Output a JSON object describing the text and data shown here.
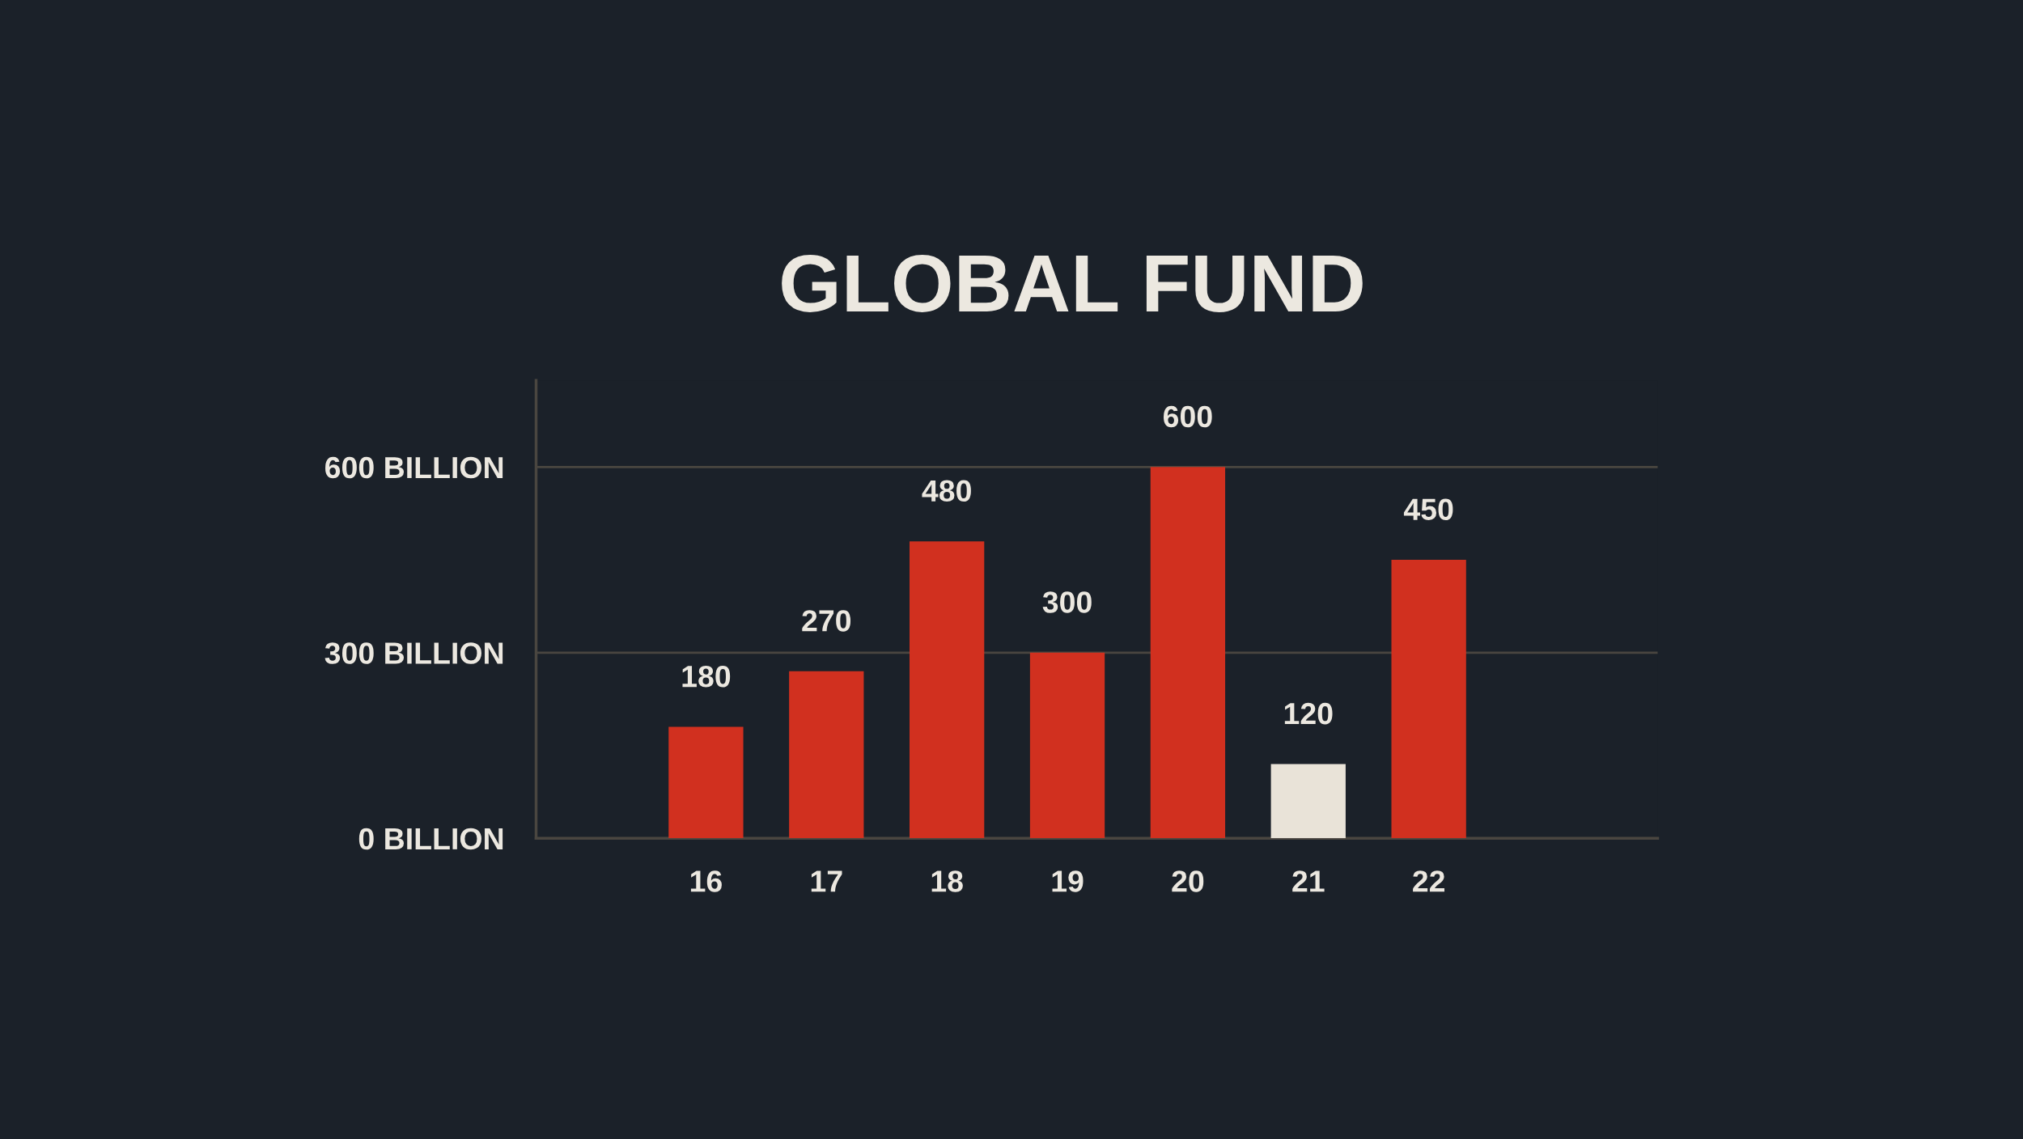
{
  "chart_data": {
    "type": "bar",
    "title": "GLOBAL FUND",
    "categories": [
      "16",
      "17",
      "18",
      "19",
      "20",
      "21",
      "22"
    ],
    "values": [
      180,
      270,
      480,
      300,
      600,
      120,
      450
    ],
    "colors": [
      "#d1301f",
      "#d1301f",
      "#d1301f",
      "#d1301f",
      "#d1301f",
      "#e9e3d8",
      "#d1301f"
    ],
    "ylim": [
      0,
      740
    ],
    "yticks": [
      {
        "value": 0,
        "label": "0 BILLION"
      },
      {
        "value": 300,
        "label": "300 BILLION"
      },
      {
        "value": 600,
        "label": "600 BILLION"
      }
    ],
    "grid": "y",
    "data_labels": true
  }
}
